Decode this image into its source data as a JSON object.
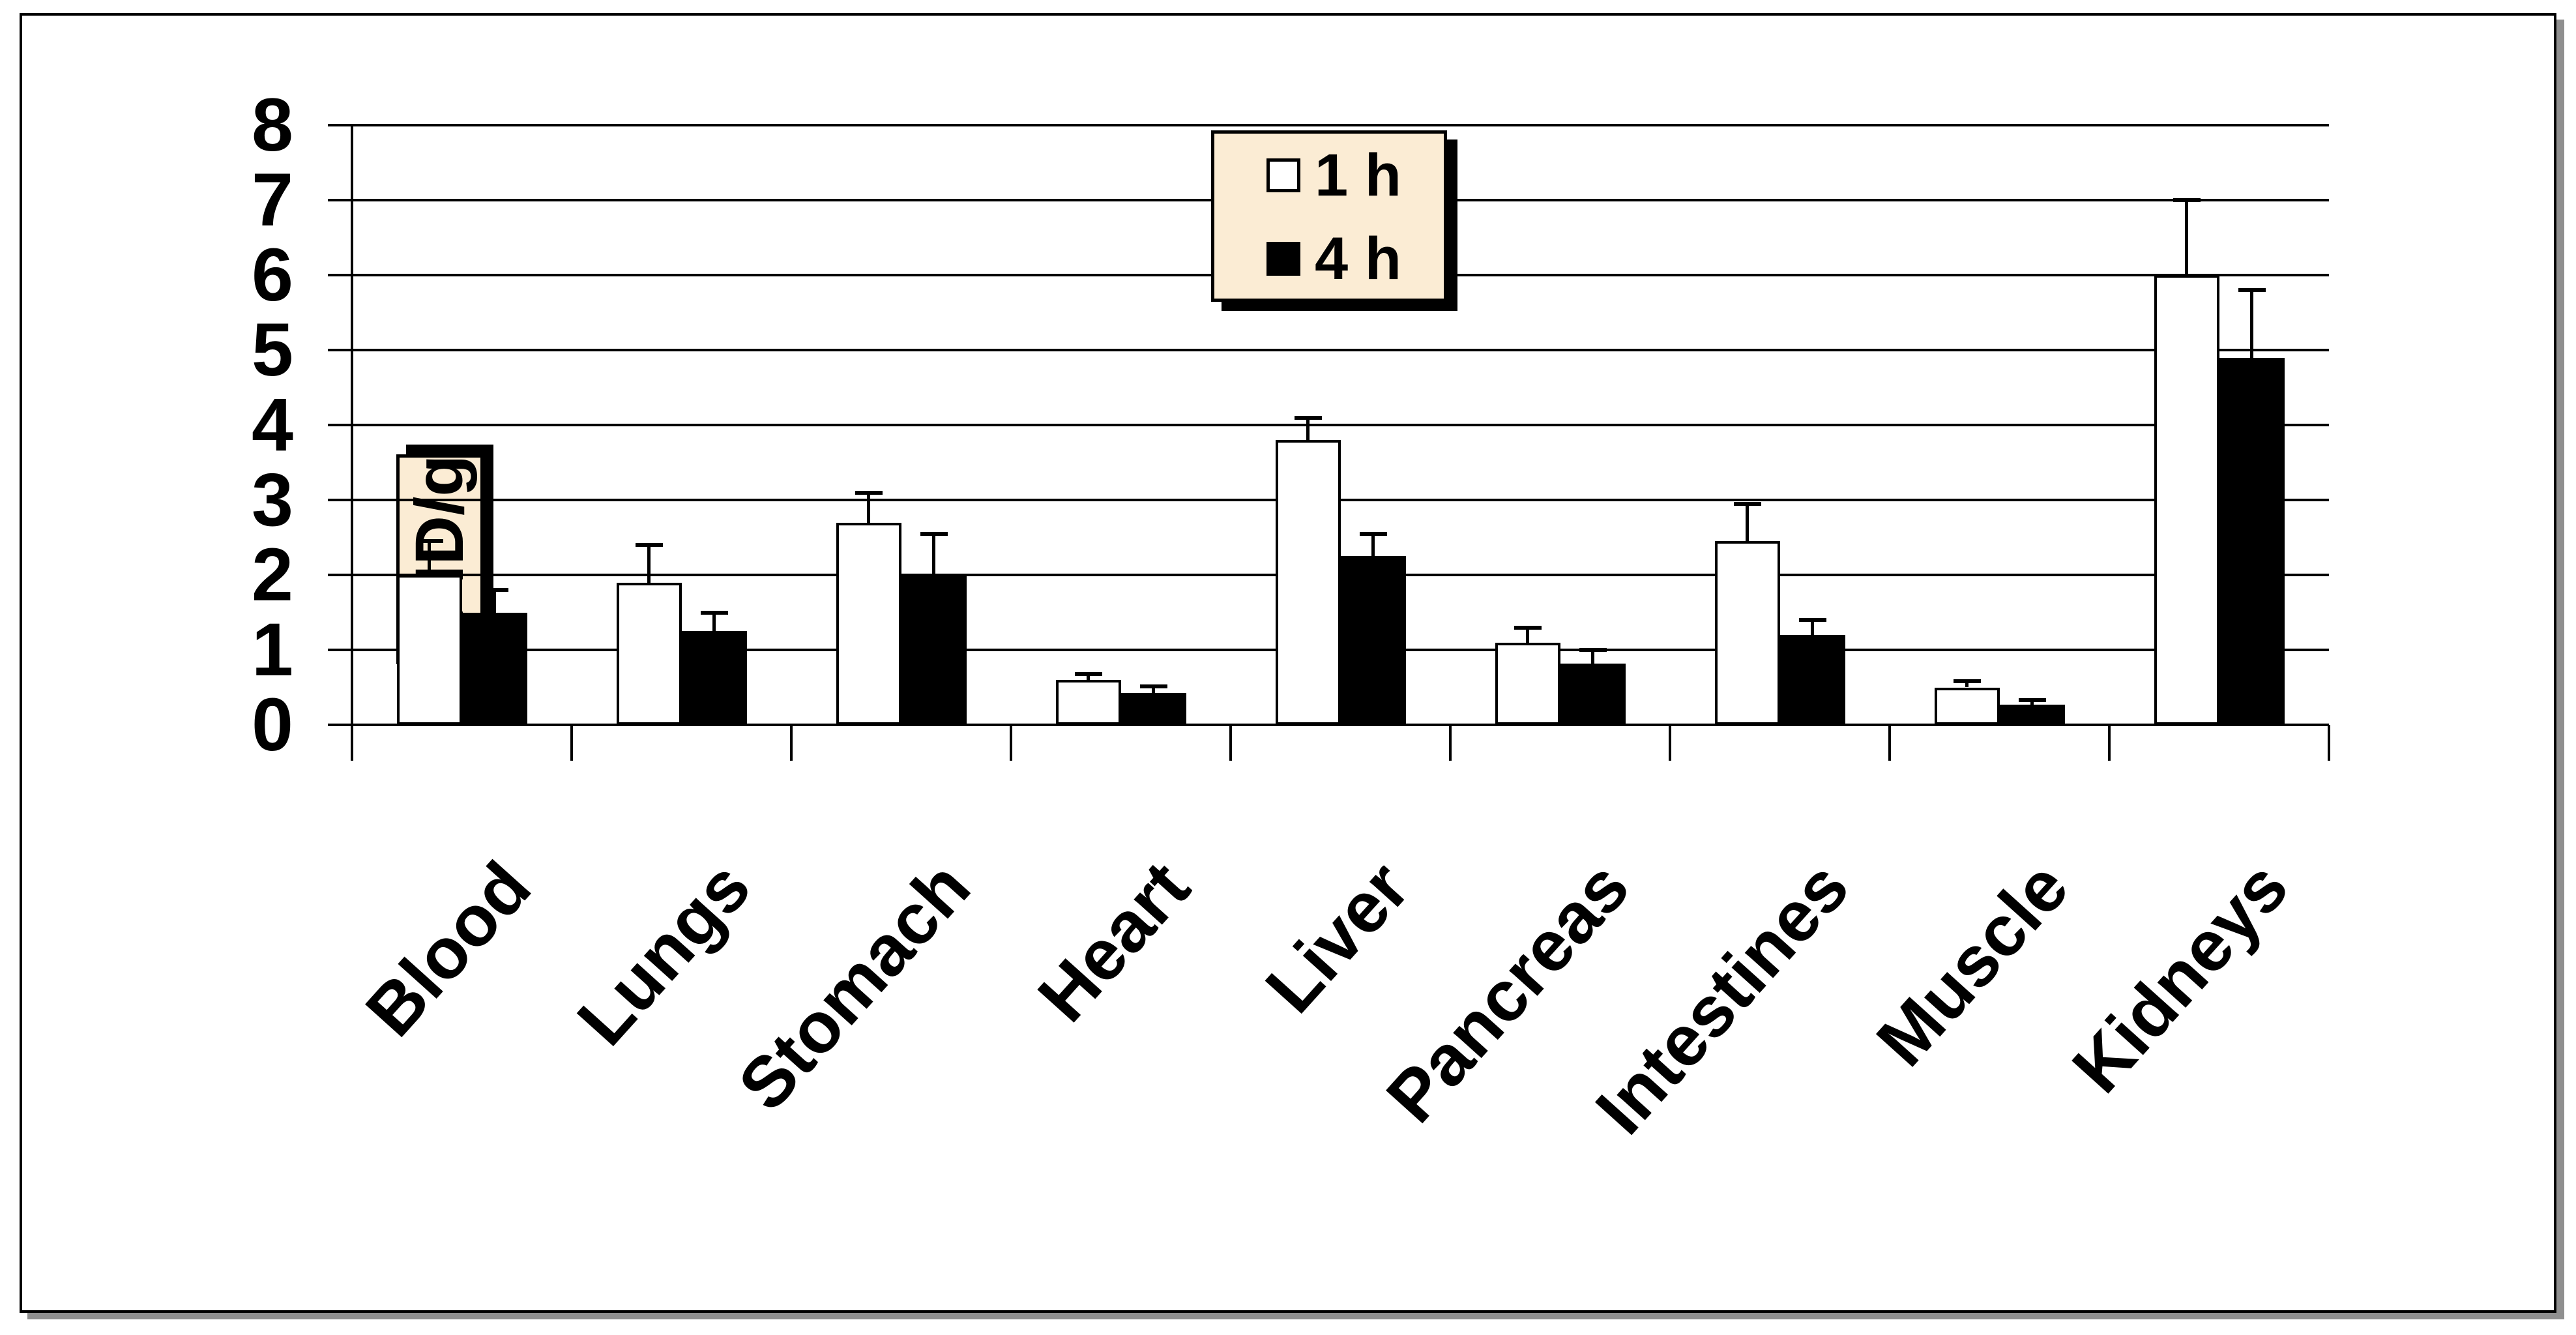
{
  "figure": {
    "background_color": "#ffffff",
    "frame_border_color": "#000000",
    "frame_shadow_color": "#8f8f8f",
    "panel_fill_color": "#fbecd4",
    "bar_fill_1h": "#ffffff",
    "bar_fill_4h": "#000000",
    "gridline_color": "#000000"
  },
  "legend": {
    "position": "top-center",
    "entries": [
      {
        "label": "1 h",
        "swatch_color": "#ffffff"
      },
      {
        "label": "4 h",
        "swatch_color": "#000000"
      }
    ]
  },
  "chart_data": {
    "type": "bar",
    "title": "",
    "xlabel": "",
    "ylabel": "% ID/g",
    "ylim": [
      0,
      8
    ],
    "yticks": [
      0,
      1,
      2,
      3,
      4,
      5,
      6,
      7,
      8
    ],
    "grid": "horizontal",
    "error_bars": "upper-only",
    "categories": [
      "Blood",
      "Lungs",
      "Stomach",
      "Heart",
      "Liver",
      "Pancreas",
      "Intestines",
      "Muscle",
      "Kidneys"
    ],
    "series": [
      {
        "name": "1 h",
        "color": "#ffffff",
        "values": [
          2.0,
          1.9,
          2.7,
          0.6,
          3.8,
          1.1,
          2.45,
          0.5,
          6.0
        ],
        "errors": [
          0.45,
          0.5,
          0.4,
          0.08,
          0.3,
          0.2,
          0.5,
          0.08,
          1.0
        ]
      },
      {
        "name": "4 h",
        "color": "#000000",
        "values": [
          1.5,
          1.25,
          2.0,
          0.43,
          2.25,
          0.82,
          1.2,
          0.27,
          4.9
        ],
        "errors": [
          0.3,
          0.25,
          0.55,
          0.08,
          0.3,
          0.18,
          0.2,
          0.06,
          0.9
        ]
      }
    ]
  }
}
